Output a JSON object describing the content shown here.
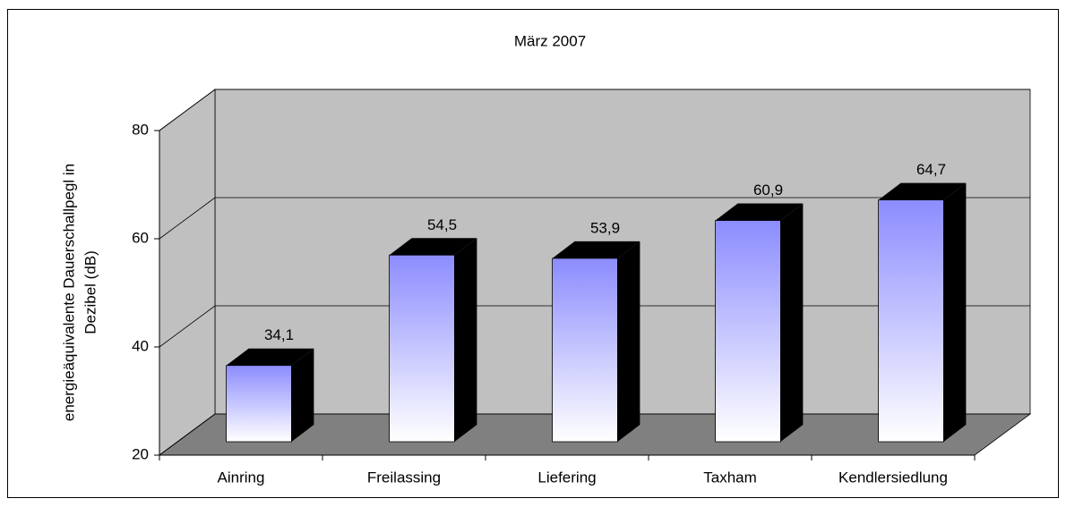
{
  "chart_data": {
    "type": "bar3d",
    "title": "März 2007",
    "ylabel": [
      "energieäquivalente Dauerschallpegl in",
      "Dezibel (dB)"
    ],
    "categories": [
      "Ainring",
      "Freilassing",
      "Liefering",
      "Taxham",
      "Kendlersiedlung"
    ],
    "values": [
      34.1,
      54.5,
      53.9,
      60.9,
      64.7
    ],
    "value_labels": [
      "34,1",
      "54,5",
      "53,9",
      "60,9",
      "64,7"
    ],
    "color": "#8c8cff",
    "ylim": [
      20,
      80
    ],
    "yticks": [
      20,
      40,
      60,
      80
    ],
    "grid": true
  }
}
